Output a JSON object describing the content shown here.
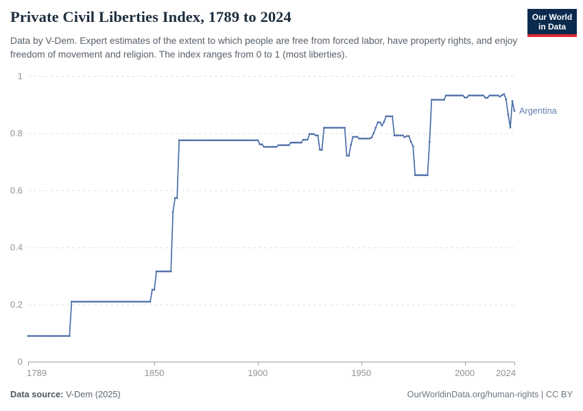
{
  "header": {
    "title": "Private Civil Liberties Index, 1789 to 2024",
    "subtitle": "Data by V-Dem. Expert estimates of the extent to which people are free from forced labor, have property rights, and enjoy freedom of movement and religion. The index ranges from 0 to 1 (most liberties)."
  },
  "logo": {
    "line1": "Our World",
    "line2": "in Data",
    "bg_color": "#0b2a4e",
    "accent_color": "#dc2a32"
  },
  "chart_data": {
    "type": "line",
    "title": "Private Civil Liberties Index, 1789 to 2024",
    "xlabel": "",
    "ylabel": "",
    "x_ticks": [
      1789,
      1850,
      1900,
      1950,
      2000,
      2024
    ],
    "x_range": [
      1789,
      2024
    ],
    "y_ticks": [
      0,
      0.2,
      0.4,
      0.6,
      0.8,
      1
    ],
    "y_range": [
      0,
      1
    ],
    "grid": "dashed-horizontal",
    "legend_position": "end-of-line-label",
    "series": [
      {
        "name": "Argentina",
        "color": "#4a6da8",
        "label_color": "#5f7cb2",
        "step_points": [
          [
            1789,
            0.09
          ],
          [
            1810,
            0.21
          ],
          [
            1849,
            0.252
          ],
          [
            1851,
            0.316
          ],
          [
            1859,
            0.525
          ],
          [
            1860,
            0.573
          ],
          [
            1862,
            0.775
          ],
          [
            1901,
            0.761
          ],
          [
            1903,
            0.752
          ],
          [
            1910,
            0.758
          ],
          [
            1916,
            0.767
          ],
          [
            1922,
            0.777
          ],
          [
            1925,
            0.797
          ],
          [
            1928,
            0.792
          ],
          [
            1930,
            0.742
          ],
          [
            1932,
            0.819
          ],
          [
            1943,
            0.721
          ],
          [
            1945,
            0.76
          ],
          [
            1946,
            0.787
          ],
          [
            1949,
            0.781
          ],
          [
            1955,
            0.785
          ],
          [
            1956,
            0.8
          ],
          [
            1957,
            0.82
          ],
          [
            1958,
            0.838
          ],
          [
            1960,
            0.827
          ],
          [
            1961,
            0.84
          ],
          [
            1962,
            0.859
          ],
          [
            1966,
            0.792
          ],
          [
            1971,
            0.786
          ],
          [
            1972,
            0.79
          ],
          [
            1974,
            0.77
          ],
          [
            1975,
            0.754
          ],
          [
            1976,
            0.653
          ],
          [
            1983,
            0.77
          ],
          [
            1984,
            0.917
          ],
          [
            1991,
            0.932
          ],
          [
            2000,
            0.925
          ],
          [
            2002,
            0.932
          ],
          [
            2010,
            0.924
          ],
          [
            2012,
            0.932
          ],
          [
            2017,
            0.928
          ],
          [
            2018,
            0.933
          ],
          [
            2019,
            0.936
          ],
          [
            2020,
            0.918
          ],
          [
            2021,
            0.865
          ],
          [
            2022,
            0.82
          ],
          [
            2023,
            0.912
          ],
          [
            2024,
            0.878
          ]
        ]
      }
    ],
    "colors": {
      "grid": "#e0e0e0",
      "axis": "#9aa0a5",
      "tick_label": "#8f9296"
    }
  },
  "entity_label": {
    "text": "Argentina"
  },
  "footer": {
    "source_label": "Data source:",
    "source_value": " V-Dem (2025)",
    "right_text": "OurWorldinData.org/human-rights | CC BY"
  }
}
